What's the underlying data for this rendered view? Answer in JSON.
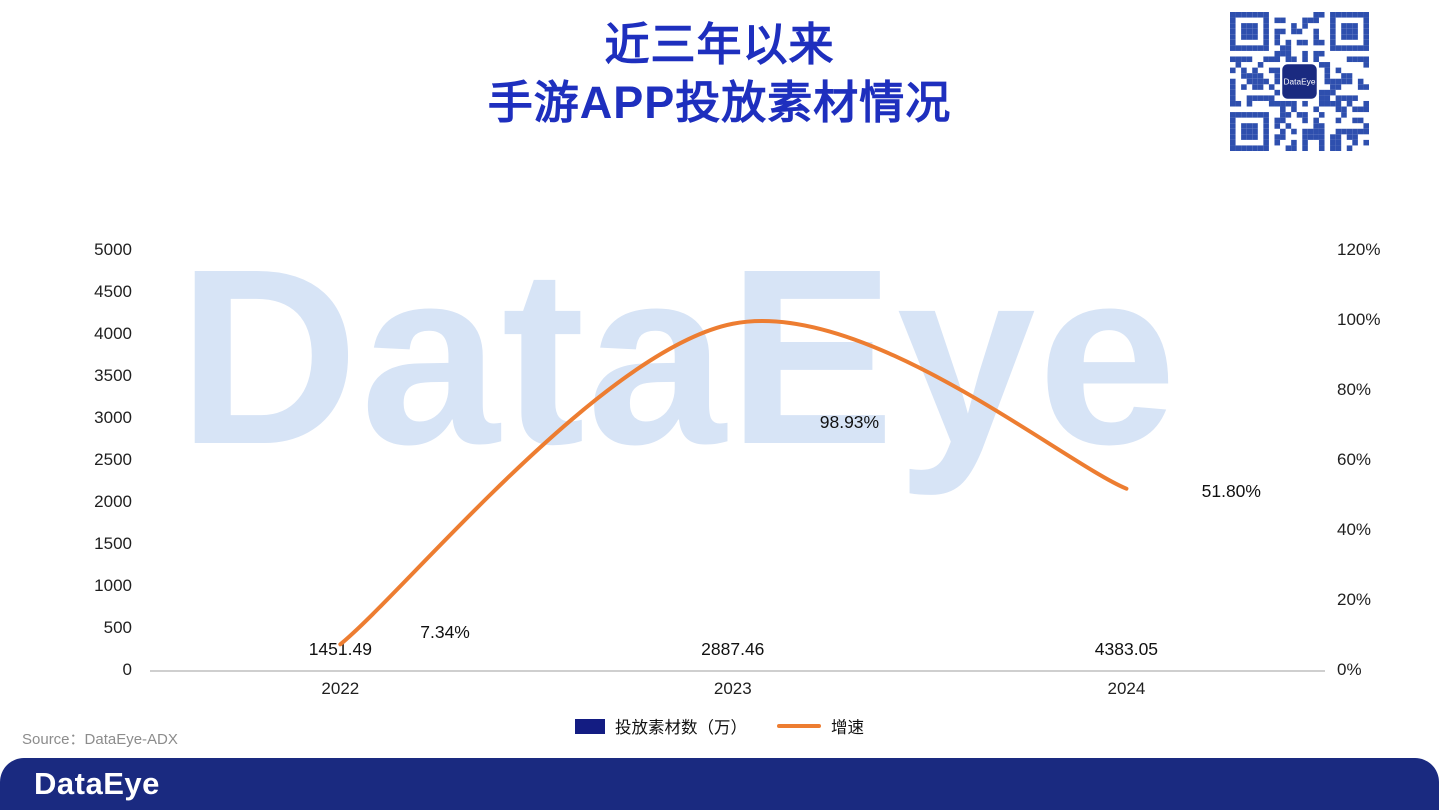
{
  "title": {
    "line1": "近三年以来",
    "line2": "手游APP投放素材情况"
  },
  "watermark_text": "DataEye",
  "source_text": "Source：DataEye-ADX",
  "footer": {
    "logo_text": "DataEye"
  },
  "qr": {
    "center_label": "DataEye"
  },
  "colors": {
    "title_blue": "#1e2fbe",
    "bar_navy": "#131c82",
    "line_orange": "#ED7D31",
    "footer_navy": "#1a2a80",
    "watermark_blue": "#d7e4f6",
    "qr_blue": "#2e4fae"
  },
  "chart_data": {
    "type": "combo-bar-line",
    "categories": [
      "2022",
      "2023",
      "2024"
    ],
    "series": [
      {
        "name": "投放素材数（万）",
        "type": "bar",
        "axis": "left",
        "values": [
          1451.49,
          2887.46,
          4383.05
        ],
        "labels": [
          "1451.49",
          "2887.46",
          "4383.05"
        ],
        "color": "#131c82"
      },
      {
        "name": "增速",
        "type": "line",
        "axis": "right",
        "values": [
          7.34,
          98.93,
          51.8
        ],
        "labels": [
          "7.34%",
          "98.93%",
          "51.80%"
        ],
        "color": "#ED7D31"
      }
    ],
    "left_axis": {
      "min": 0,
      "max": 5000,
      "step": 500,
      "ticks": [
        "5000",
        "4500",
        "4000",
        "3500",
        "3000",
        "2500",
        "2000",
        "1500",
        "1000",
        "500",
        "0"
      ]
    },
    "right_axis": {
      "min": 0,
      "max": 120,
      "step": 20,
      "ticks": [
        "120%",
        "100%",
        "80%",
        "60%",
        "40%",
        "20%",
        "0%"
      ]
    },
    "legend_position": "bottom",
    "grid": false
  }
}
